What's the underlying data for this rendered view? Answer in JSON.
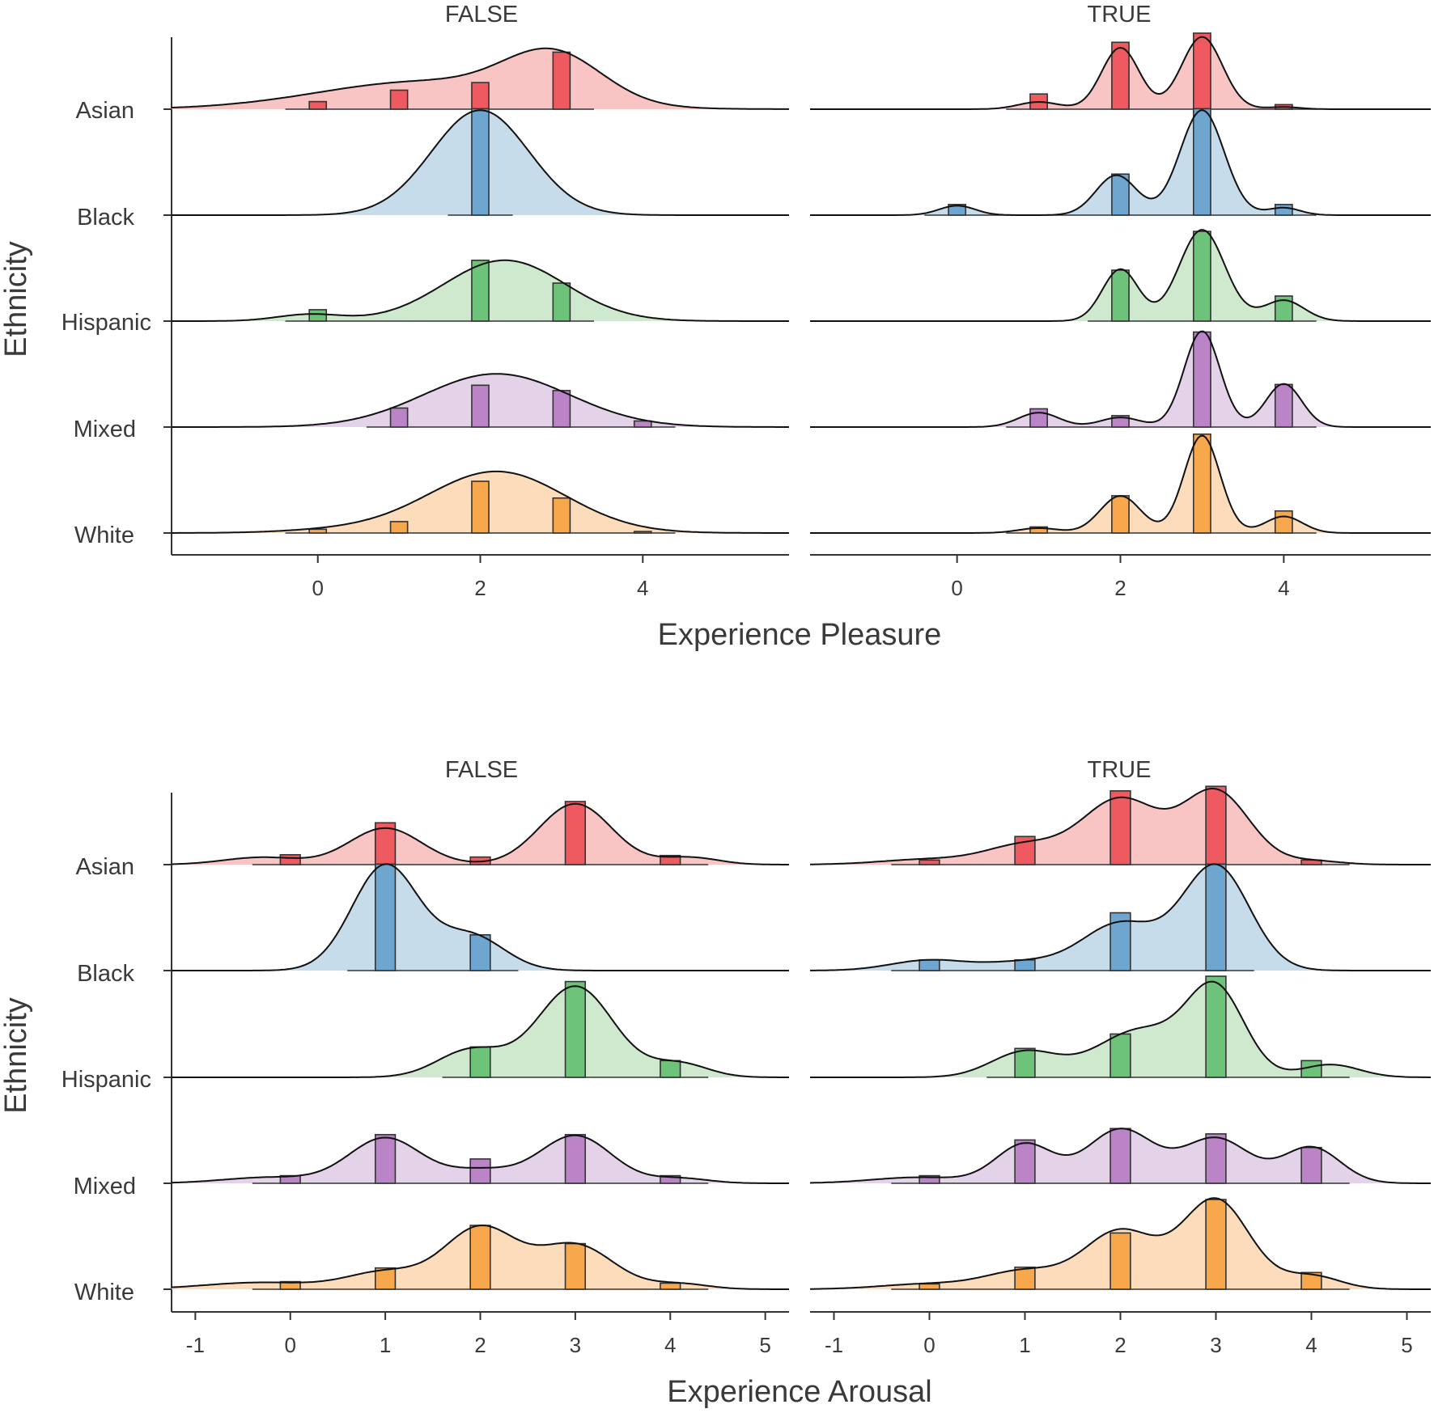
{
  "colors": {
    "Asian": {
      "fill": "#f8c4c4",
      "bar": "#ee5a5f"
    },
    "Black": {
      "fill": "#c6dcea",
      "bar": "#6fa6cf"
    },
    "Hispanic": {
      "fill": "#cfe9cf",
      "bar": "#6cc379"
    },
    "Mixed": {
      "fill": "#e4d2e8",
      "bar": "#bb84c6"
    },
    "White": {
      "fill": "#fcdcba",
      "bar": "#f8a84c"
    }
  },
  "chart_data": [
    {
      "type": "ridgeline",
      "title": "",
      "xlabel": "Experience Pleasure",
      "ylabel": "Ethnicity",
      "xlim": [
        -1.8,
        5.8
      ],
      "xticks": [
        0,
        2,
        4
      ],
      "xtick_labels": [
        "0",
        "2",
        "4"
      ],
      "categories": [
        "Asian",
        "Black",
        "Hispanic",
        "Mixed",
        "White"
      ],
      "facets": [
        {
          "label": "FALSE",
          "series": [
            {
              "name": "Asian",
              "histogram": {
                "x": [
                  0,
                  1,
                  2,
                  3
                ],
                "count": [
                  0.1,
                  0.25,
                  0.35,
                  0.75
                ]
              },
              "density": {
                "components": [
                  [
                    2.9,
                    0.6,
                    0.6
                  ],
                  [
                    1.3,
                    1.3,
                    0.35
                  ]
                ],
                "scale": 0.8
              }
            },
            {
              "name": "Black",
              "histogram": {
                "x": [
                  2
                ],
                "count": [
                  1.4
                ]
              },
              "density": {
                "components": [
                  [
                    2.0,
                    0.6,
                    1
                  ]
                ],
                "scale": 1.38
              }
            },
            {
              "name": "Hispanic",
              "histogram": {
                "x": [
                  0,
                  2,
                  3
                ],
                "count": [
                  0.15,
                  0.8,
                  0.5
                ]
              },
              "density": {
                "components": [
                  [
                    2.3,
                    0.75,
                    1
                  ],
                  [
                    -0.1,
                    0.4,
                    0.11
                  ]
                ],
                "scale": 0.8
              }
            },
            {
              "name": "Mixed",
              "histogram": {
                "x": [
                  1,
                  2,
                  3,
                  4
                ],
                "count": [
                  0.25,
                  0.55,
                  0.48,
                  0.08
                ]
              },
              "density": {
                "components": [
                  [
                    2.2,
                    0.9,
                    1
                  ]
                ],
                "scale": 0.7
              }
            },
            {
              "name": "White",
              "histogram": {
                "x": [
                  0,
                  1,
                  2,
                  3,
                  4
                ],
                "count": [
                  0.05,
                  0.15,
                  0.68,
                  0.46,
                  0.02
                ]
              },
              "density": {
                "components": [
                  [
                    2.2,
                    0.85,
                    1
                  ],
                  [
                    0.3,
                    0.7,
                    0.05
                  ]
                ],
                "scale": 0.81
              }
            }
          ]
        },
        {
          "label": "TRUE",
          "series": [
            {
              "name": "Asian",
              "histogram": {
                "x": [
                  1,
                  2,
                  3,
                  4
                ],
                "count": [
                  0.2,
                  0.88,
                  1.0,
                  0.06
                ]
              },
              "density": {
                "components": [
                  [
                    2.0,
                    0.23,
                    0.85
                  ],
                  [
                    3.0,
                    0.25,
                    1.0
                  ],
                  [
                    1.0,
                    0.25,
                    0.1
                  ],
                  [
                    4.0,
                    0.2,
                    0.03
                  ]
                ],
                "scale": 0.95
              }
            },
            {
              "name": "Black",
              "histogram": {
                "x": [
                  0,
                  2,
                  3,
                  4
                ],
                "count": [
                  0.14,
                  0.54,
                  1.4,
                  0.14
                ]
              },
              "density": {
                "components": [
                  [
                    3.0,
                    0.27,
                    1.0
                  ],
                  [
                    1.95,
                    0.25,
                    0.38
                  ],
                  [
                    0.0,
                    0.22,
                    0.09
                  ],
                  [
                    4.0,
                    0.2,
                    0.07
                  ]
                ],
                "scale": 1.38
              }
            },
            {
              "name": "Hispanic",
              "histogram": {
                "x": [
                  2,
                  3,
                  4
                ],
                "count": [
                  0.67,
                  1.18,
                  0.33
                ]
              },
              "density": {
                "components": [
                  [
                    2.0,
                    0.22,
                    0.5
                  ],
                  [
                    3.0,
                    0.28,
                    0.88
                  ],
                  [
                    4.0,
                    0.25,
                    0.2
                  ]
                ],
                "scale": 1.2
              }
            },
            {
              "name": "Mixed",
              "histogram": {
                "x": [
                  1,
                  2,
                  3,
                  4
                ],
                "count": [
                  0.24,
                  0.15,
                  1.25,
                  0.56
                ]
              },
              "density": {
                "components": [
                  [
                    1.0,
                    0.25,
                    0.15
                  ],
                  [
                    2.0,
                    0.25,
                    0.1
                  ],
                  [
                    3.0,
                    0.22,
                    1.0
                  ],
                  [
                    4.0,
                    0.22,
                    0.45
                  ]
                ],
                "scale": 1.26
              }
            },
            {
              "name": "White",
              "histogram": {
                "x": [
                  1,
                  2,
                  3,
                  4
                ],
                "count": [
                  0.08,
                  0.49,
                  1.3,
                  0.29
                ]
              },
              "density": {
                "components": [
                  [
                    2.0,
                    0.25,
                    0.38
                  ],
                  [
                    3.0,
                    0.22,
                    1.0
                  ],
                  [
                    4.0,
                    0.23,
                    0.17
                  ],
                  [
                    1.0,
                    0.25,
                    0.05
                  ]
                ],
                "scale": 1.28
              }
            }
          ]
        }
      ]
    },
    {
      "type": "ridgeline",
      "title": "",
      "xlabel": "Experience Arousal",
      "ylabel": "Ethnicity",
      "xlim": [
        -1.25,
        5.25
      ],
      "xticks": [
        -1,
        0,
        1,
        2,
        3,
        4,
        5
      ],
      "xtick_labels": [
        "-1",
        "0",
        "1",
        "2",
        "3",
        "4",
        "5"
      ],
      "categories": [
        "Asian",
        "Black",
        "Hispanic",
        "Mixed",
        "White"
      ],
      "facets": [
        {
          "label": "FALSE",
          "series": [
            {
              "name": "Asian",
              "histogram": {
                "x": [
                  0,
                  1,
                  2,
                  3,
                  4
                ],
                "count": [
                  0.13,
                  0.55,
                  0.1,
                  0.83,
                  0.12
                ]
              },
              "density": {
                "components": [
                  [
                    1.0,
                    0.38,
                    0.6
                  ],
                  [
                    3.0,
                    0.38,
                    1.0
                  ],
                  [
                    -0.3,
                    0.4,
                    0.12
                  ],
                  [
                    4.2,
                    0.3,
                    0.12
                  ]
                ],
                "scale": 0.8
              }
            },
            {
              "name": "Black",
              "histogram": {
                "x": [
                  1,
                  2
                ],
                "count": [
                  1.4,
                  0.47
                ]
              },
              "density": {
                "components": [
                  [
                    1.0,
                    0.35,
                    1.0
                  ],
                  [
                    1.9,
                    0.35,
                    0.33
                  ]
                ],
                "scale": 1.4
              }
            },
            {
              "name": "Hispanic",
              "histogram": {
                "x": [
                  2,
                  3,
                  4
                ],
                "count": [
                  0.4,
                  1.26,
                  0.22
                ]
              },
              "density": {
                "components": [
                  [
                    3.0,
                    0.4,
                    1.0
                  ],
                  [
                    1.9,
                    0.35,
                    0.3
                  ],
                  [
                    4.1,
                    0.3,
                    0.15
                  ]
                ],
                "scale": 1.2
              }
            },
            {
              "name": "Mixed",
              "histogram": {
                "x": [
                  0,
                  1,
                  2,
                  3,
                  4
                ],
                "count": [
                  0.1,
                  0.64,
                  0.32,
                  0.64,
                  0.1
                ]
              },
              "density": {
                "components": [
                  [
                    1.0,
                    0.38,
                    0.9
                  ],
                  [
                    3.0,
                    0.38,
                    0.95
                  ],
                  [
                    2.0,
                    0.35,
                    0.25
                  ],
                  [
                    -0.2,
                    0.5,
                    0.12
                  ],
                  [
                    4.1,
                    0.3,
                    0.1
                  ]
                ],
                "scale": 0.63
              }
            },
            {
              "name": "White",
              "histogram": {
                "x": [
                  0,
                  1,
                  2,
                  3,
                  4
                ],
                "count": [
                  0.1,
                  0.28,
                  0.84,
                  0.6,
                  0.08
                ]
              },
              "density": {
                "components": [
                  [
                    2.0,
                    0.38,
                    0.9
                  ],
                  [
                    3.0,
                    0.4,
                    0.65
                  ],
                  [
                    1.0,
                    0.4,
                    0.25
                  ],
                  [
                    -0.3,
                    0.6,
                    0.1
                  ],
                  [
                    4.1,
                    0.3,
                    0.08
                  ]
                ],
                "scale": 0.84
              }
            }
          ]
        },
        {
          "label": "TRUE",
          "series": [
            {
              "name": "Asian",
              "histogram": {
                "x": [
                  0,
                  1,
                  2,
                  3,
                  4
                ],
                "count": [
                  0.06,
                  0.37,
                  0.97,
                  1.03,
                  0.06
                ]
              },
              "density": {
                "components": [
                  [
                    2.0,
                    0.4,
                    0.85
                  ],
                  [
                    3.0,
                    0.35,
                    0.95
                  ],
                  [
                    1.0,
                    0.4,
                    0.25
                  ],
                  [
                    0.0,
                    0.5,
                    0.07
                  ],
                  [
                    4.0,
                    0.3,
                    0.05
                  ]
                ],
                "scale": 1.0
              }
            },
            {
              "name": "Black",
              "histogram": {
                "x": [
                  0,
                  1,
                  2,
                  3
                ],
                "count": [
                  0.14,
                  0.14,
                  0.76,
                  1.4
                ]
              },
              "density": {
                "components": [
                  [
                    3.0,
                    0.35,
                    1.0
                  ],
                  [
                    2.0,
                    0.4,
                    0.45
                  ],
                  [
                    0.0,
                    0.4,
                    0.1
                  ],
                  [
                    1.0,
                    0.4,
                    0.08
                  ]
                ],
                "scale": 1.4
              }
            },
            {
              "name": "Hispanic",
              "histogram": {
                "x": [
                  1,
                  2,
                  3,
                  4
                ],
                "count": [
                  0.38,
                  0.57,
                  1.33,
                  0.22
                ]
              },
              "density": {
                "components": [
                  [
                    3.0,
                    0.3,
                    1.0
                  ],
                  [
                    2.2,
                    0.45,
                    0.55
                  ],
                  [
                    1.0,
                    0.35,
                    0.3
                  ],
                  [
                    4.2,
                    0.3,
                    0.15
                  ]
                ],
                "scale": 1.26
              }
            },
            {
              "name": "Mixed",
              "histogram": {
                "x": [
                  0,
                  1,
                  2,
                  3,
                  4
                ],
                "count": [
                  0.1,
                  0.57,
                  0.72,
                  0.65,
                  0.47
                ]
              },
              "density": {
                "components": [
                  [
                    2.0,
                    0.35,
                    0.9
                  ],
                  [
                    1.0,
                    0.3,
                    0.65
                  ],
                  [
                    3.0,
                    0.35,
                    0.75
                  ],
                  [
                    4.0,
                    0.3,
                    0.6
                  ],
                  [
                    -0.1,
                    0.5,
                    0.1
                  ]
                ],
                "scale": 0.72
              }
            },
            {
              "name": "White",
              "histogram": {
                "x": [
                  0,
                  1,
                  2,
                  3,
                  4
                ],
                "count": [
                  0.07,
                  0.29,
                  0.74,
                  1.18,
                  0.22
                ]
              },
              "density": {
                "components": [
                  [
                    3.0,
                    0.35,
                    1.0
                  ],
                  [
                    2.0,
                    0.38,
                    0.65
                  ],
                  [
                    1.0,
                    0.4,
                    0.2
                  ],
                  [
                    4.0,
                    0.3,
                    0.15
                  ],
                  [
                    0.0,
                    0.5,
                    0.06
                  ]
                ],
                "scale": 1.2
              }
            }
          ]
        }
      ]
    }
  ]
}
